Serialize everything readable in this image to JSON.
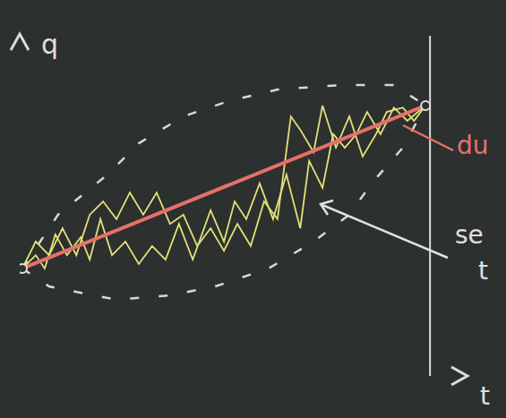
{
  "chart_data": {
    "type": "line",
    "x_label": "t",
    "y_label": "q",
    "xlim": [
      0,
      10
    ],
    "ylim": [
      0,
      10
    ],
    "tick_labels": false,
    "grid": false,
    "vertical_line_x": 9.2,
    "annotations": [
      {
        "text": "du",
        "color": "#e8706a"
      },
      {
        "text": "se",
        "color": "#e0e0e0"
      },
      {
        "text": "t",
        "color": "#e0e0e0"
      }
    ],
    "series": [
      {
        "color": "#d8d8d8",
        "line_style": "dashed",
        "x": [
          0.06,
          0.86,
          1.47,
          1.97,
          2.67,
          3.67,
          4.68,
          5.78,
          7.19,
          8.39,
          9.1
        ],
        "values": [
          3.16,
          4.74,
          5.39,
          5.92,
          6.84,
          7.63,
          8.08,
          8.42,
          8.55,
          8.55,
          7.95
        ]
      },
      {
        "color": "#d8d8d8",
        "line_style": "dashed",
        "x": [
          0.06,
          0.66,
          2.17,
          3.37,
          4.38,
          5.58,
          6.59,
          7.39,
          7.89,
          8.59,
          9.1
        ],
        "values": [
          3.16,
          2.63,
          2.24,
          2.37,
          2.63,
          3.16,
          3.95,
          4.74,
          5.66,
          6.71,
          7.95
        ]
      },
      {
        "color": "#e6e07a",
        "line_style": "solid",
        "x": [
          0.06,
          0.36,
          0.56,
          0.8,
          1.06,
          1.37,
          1.57,
          1.81,
          2.07,
          2.37,
          2.67,
          2.97,
          3.27,
          3.57,
          3.88,
          4.28,
          4.58,
          4.82,
          5.08,
          5.38,
          5.68,
          5.98,
          6.29,
          6.49,
          6.79,
          7.03,
          7.29,
          7.55,
          7.79,
          8.09,
          8.39,
          8.69,
          9.1
        ],
        "values": [
          3.16,
          3.55,
          3.16,
          4.16,
          3.55,
          4.08,
          3.42,
          4.61,
          3.55,
          3.95,
          3.29,
          3.82,
          3.42,
          4.47,
          3.42,
          4.87,
          3.95,
          5.13,
          4.61,
          5.66,
          4.61,
          5.92,
          4.34,
          6.32,
          5.53,
          7.11,
          6.71,
          7.11,
          7.76,
          7.11,
          7.89,
          7.5,
          7.95
        ]
      },
      {
        "color": "#e6e07a",
        "line_style": "solid",
        "x": [
          0.06,
          0.36,
          0.66,
          0.96,
          1.27,
          1.57,
          1.87,
          2.17,
          2.47,
          2.77,
          3.07,
          3.37,
          3.67,
          3.98,
          4.28,
          4.58,
          4.88,
          5.18,
          5.48,
          5.78,
          6.08,
          6.29,
          6.59,
          6.79,
          7.09,
          7.39,
          7.69,
          7.99,
          8.23,
          8.59,
          8.84,
          9.1
        ],
        "values": [
          3.16,
          3.95,
          3.55,
          4.34,
          3.55,
          4.74,
          5.13,
          4.61,
          5.39,
          4.74,
          5.39,
          4.47,
          4.74,
          3.82,
          4.34,
          3.68,
          4.47,
          3.82,
          5.13,
          4.61,
          7.63,
          7.24,
          6.58,
          7.95,
          6.71,
          7.63,
          6.45,
          7.11,
          7.76,
          7.89,
          7.5,
          7.95
        ]
      },
      {
        "color": "#e8706a",
        "line_style": "solid",
        "marker": "circle",
        "x": [
          0.06,
          9.1
        ],
        "values": [
          3.16,
          7.95
        ]
      }
    ]
  }
}
